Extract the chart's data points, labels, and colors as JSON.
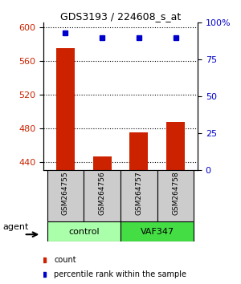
{
  "title": "GDS3193 / 224608_s_at",
  "samples": [
    "GSM264755",
    "GSM264756",
    "GSM264757",
    "GSM264758"
  ],
  "counts": [
    575,
    447,
    475,
    487
  ],
  "percentiles": [
    93,
    90,
    90,
    90
  ],
  "groups": [
    "control",
    "control",
    "VAF347",
    "VAF347"
  ],
  "group_colors": {
    "control": "#aaffaa",
    "VAF347": "#44dd44"
  },
  "bar_color": "#cc2200",
  "dot_color": "#0000cc",
  "ylim_left": [
    430,
    605
  ],
  "ylim_right": [
    0,
    100
  ],
  "yticks_left": [
    440,
    480,
    520,
    560,
    600
  ],
  "yticks_right": [
    0,
    25,
    50,
    75,
    100
  ],
  "ytick_right_labels": [
    "0",
    "25",
    "50",
    "75",
    "100%"
  ],
  "legend_count_label": "count",
  "legend_pct_label": "percentile rank within the sample",
  "agent_label": "agent"
}
